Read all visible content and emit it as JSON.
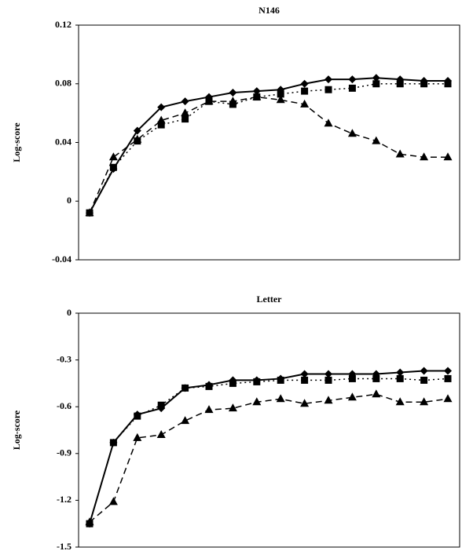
{
  "chart_data": [
    {
      "type": "line",
      "title": "N146",
      "y_label": "Log-score",
      "categories": [
        null,
        null,
        null,
        null,
        null,
        null,
        null,
        null,
        null,
        null,
        null,
        null,
        null,
        null,
        null,
        null
      ],
      "ylim": [
        -0.04,
        0.12
      ],
      "yticks": [
        -0.04,
        0,
        0.04,
        0.08,
        0.12
      ],
      "series": [
        {
          "color": "#000000",
          "marker": "diamond",
          "dash": "solid",
          "values": [
            -0.008,
            0.022,
            0.048,
            0.064,
            0.068,
            0.071,
            0.074,
            0.075,
            0.076,
            0.08,
            0.083,
            0.083,
            0.084,
            0.083,
            0.082,
            0.082
          ]
        },
        {
          "color": "#000000",
          "marker": "square",
          "dash": "dotted",
          "values": [
            -0.008,
            0.023,
            0.041,
            0.052,
            0.056,
            0.068,
            0.066,
            0.071,
            0.073,
            0.075,
            0.076,
            0.077,
            0.08,
            0.08,
            0.08,
            0.08
          ]
        },
        {
          "color": "#000000",
          "marker": "triangle",
          "dash": "dashed",
          "values": [
            -0.008,
            0.03,
            0.042,
            0.055,
            0.06,
            0.068,
            0.068,
            0.071,
            0.069,
            0.066,
            0.053,
            0.046,
            0.041,
            0.032,
            0.03,
            0.03
          ]
        }
      ]
    },
    {
      "type": "line",
      "title": "Letter",
      "y_label": "Log-score",
      "categories": [
        null,
        null,
        null,
        null,
        null,
        null,
        null,
        null,
        null,
        null,
        null,
        null,
        null,
        null,
        null,
        null
      ],
      "ylim": [
        -1.5,
        0
      ],
      "yticks": [
        -1.5,
        -1.2,
        -0.9,
        -0.6,
        -0.3,
        0
      ],
      "series": [
        {
          "color": "#000000",
          "marker": "diamond",
          "dash": "solid",
          "values": [
            -1.35,
            -0.83,
            -0.65,
            -0.61,
            -0.48,
            -0.46,
            -0.43,
            -0.43,
            -0.42,
            -0.39,
            -0.39,
            -0.39,
            -0.39,
            -0.38,
            -0.37,
            -0.37
          ]
        },
        {
          "color": "#000000",
          "marker": "square",
          "dash": "dotted",
          "values": [
            -1.35,
            -0.83,
            -0.66,
            -0.59,
            -0.48,
            -0.47,
            -0.45,
            -0.44,
            -0.43,
            -0.43,
            -0.43,
            -0.42,
            -0.42,
            -0.42,
            -0.43,
            -0.42
          ]
        },
        {
          "color": "#000000",
          "marker": "triangle",
          "dash": "dashed",
          "values": [
            -1.34,
            -1.21,
            -0.8,
            -0.78,
            -0.69,
            -0.62,
            -0.61,
            -0.57,
            -0.55,
            -0.58,
            -0.56,
            -0.54,
            -0.52,
            -0.57,
            -0.57,
            -0.55
          ]
        }
      ]
    }
  ]
}
